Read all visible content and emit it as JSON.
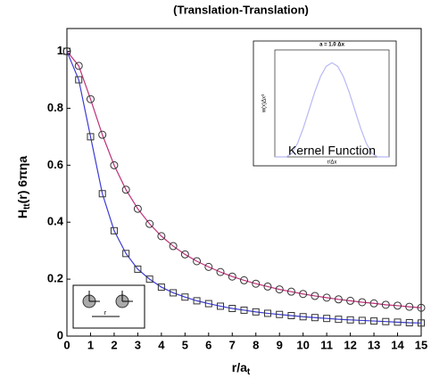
{
  "chart_data": {
    "type": "line",
    "title": "(Translation-Translation)",
    "ylabel": [
      "H",
      "tt",
      "(r) 6πηa"
    ],
    "xlabel": [
      "r/a",
      "t"
    ],
    "x": [
      0,
      0.5,
      1,
      1.5,
      2,
      2.5,
      3,
      3.5,
      4,
      4.5,
      5,
      5.5,
      6,
      6.5,
      7,
      7.5,
      8,
      8.5,
      9,
      9.5,
      10,
      10.5,
      11,
      11.5,
      12,
      12.5,
      13,
      13.5,
      14,
      14.5,
      15
    ],
    "series": [
      {
        "color": "#c0307a",
        "marker": "circle",
        "values": [
          1.0,
          0.949,
          0.832,
          0.707,
          0.6,
          0.514,
          0.447,
          0.394,
          0.351,
          0.316,
          0.287,
          0.263,
          0.243,
          0.225,
          0.209,
          0.196,
          0.184,
          0.174,
          0.164,
          0.156,
          0.148,
          0.141,
          0.135,
          0.129,
          0.124,
          0.119,
          0.115,
          0.11,
          0.107,
          0.103,
          0.0995
        ]
      },
      {
        "color": "#3b3bd8",
        "marker": "square",
        "values": [
          1.0,
          0.9,
          0.7,
          0.5,
          0.37,
          0.29,
          0.235,
          0.2,
          0.172,
          0.152,
          0.137,
          0.124,
          0.114,
          0.105,
          0.097,
          0.091,
          0.085,
          0.08,
          0.076,
          0.072,
          0.068,
          0.065,
          0.062,
          0.059,
          0.057,
          0.055,
          0.053,
          0.051,
          0.049,
          0.047,
          0.046
        ]
      }
    ],
    "xlim": [
      0,
      15
    ],
    "xticks": [
      0,
      1,
      2,
      3,
      4,
      5,
      6,
      7,
      8,
      9,
      10,
      11,
      12,
      13,
      14,
      15
    ],
    "ylim": [
      0,
      1.08
    ],
    "yticks": [
      0,
      0.2,
      0.4,
      0.6,
      0.8,
      1
    ],
    "inset": {
      "title": "a = 1.0 Δx",
      "ylabel": "w(x)Δx³",
      "xlabel": "r/Δx",
      "annotation": "Kernel Function",
      "color": "#b8b8f4",
      "x": [
        -2.5,
        -2,
        -1.75,
        -1.5,
        -1.25,
        -1,
        -0.75,
        -0.5,
        -0.25,
        0,
        0.25,
        0.5,
        0.75,
        1,
        1.25,
        1.5,
        1.75,
        2,
        2.5
      ],
      "values": [
        0,
        0,
        0.0034,
        0.0129,
        0.0272,
        0.044,
        0.0608,
        0.0751,
        0.0847,
        0.088,
        0.0847,
        0.0751,
        0.0608,
        0.044,
        0.0272,
        0.0129,
        0.0034,
        0,
        0
      ],
      "xlim": [
        -2.5,
        2.5
      ],
      "ylim": [
        0,
        0.1
      ]
    },
    "schematic_label": "r"
  }
}
